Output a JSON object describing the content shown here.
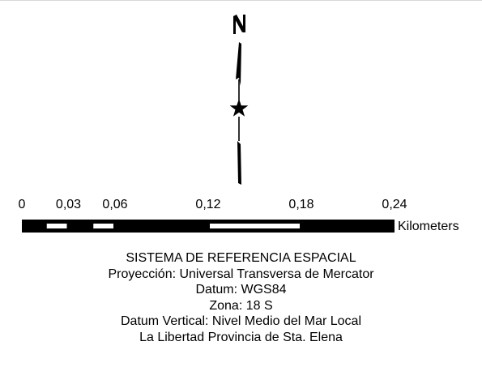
{
  "scale_bar": {
    "tick_labels": [
      "0",
      "0,03",
      "0,06",
      "0,12",
      "0,18",
      "0,24"
    ],
    "tick_values": [
      0,
      0.03,
      0.06,
      0.12,
      0.18,
      0.24
    ],
    "unit": "Kilometers",
    "segment_boundaries": [
      0,
      0.015,
      0.03,
      0.045,
      0.06,
      0.12,
      0.18,
      0.24
    ],
    "segment_colors": [
      "black",
      "white",
      "black",
      "white",
      "black",
      "white",
      "black"
    ]
  },
  "north_arrow": {
    "label": "N",
    "symbol": "star"
  },
  "reference_system": {
    "title": "SISTEMA DE REFERENCIA ESPACIAL",
    "projection": "Proyección: Universal Transversa de Mercator",
    "datum": "Datum: WGS84",
    "zone": "Zona: 18 S",
    "vertical_datum": "Datum Vertical: Nivel Medio del Mar Local",
    "location": "La Libertad Provincia de Sta. Elena"
  },
  "colors": {
    "ink": "#000000",
    "paper": "#ffffff",
    "top_rule": "#d8d8d8"
  }
}
